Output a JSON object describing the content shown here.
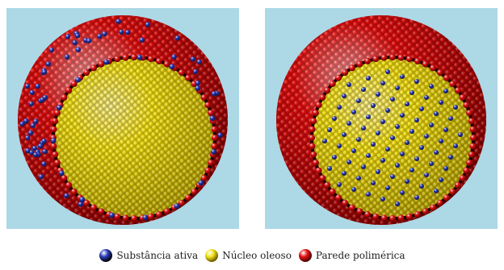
{
  "colors": {
    "background": "#add8e6",
    "active_substance": "#2b3cb8",
    "oily_core": "#f2e21a",
    "polymeric_wall": "#e31212"
  },
  "panels": [
    {
      "id": "left",
      "active_location": "wall"
    },
    {
      "id": "right",
      "active_location": "core"
    }
  ],
  "legend": {
    "items": [
      {
        "label": "Substância ativa",
        "icon": "blue-sphere-icon",
        "color": "#2b3cb8"
      },
      {
        "label": "Núcleo oleoso",
        "icon": "yellow-sphere-icon",
        "color": "#f2e21a"
      },
      {
        "label": "Parede polimérica",
        "icon": "red-sphere-icon",
        "color": "#e31212"
      }
    ]
  }
}
